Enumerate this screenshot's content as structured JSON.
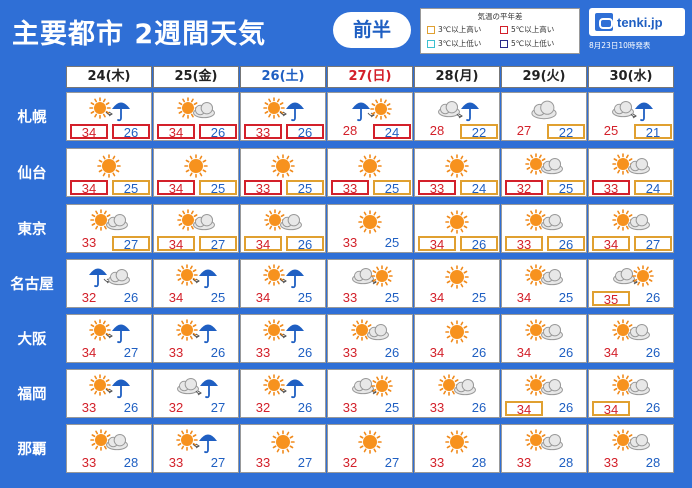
{
  "header": {
    "title": "主要都市 2週間天気",
    "half_label": "前半",
    "legend": {
      "title": "気温の平年差",
      "items": [
        {
          "label": "3℃以上高い",
          "color": "#e0a030"
        },
        {
          "label": "5℃以上高い",
          "color": "#d3202a"
        },
        {
          "label": "3℃以上低い",
          "color": "#3cc0d0"
        },
        {
          "label": "5℃以上低い",
          "color": "#2a2a8a"
        }
      ]
    },
    "logo_text": "tenki.jp",
    "issued": "8月23日10時発表"
  },
  "days": [
    {
      "label": "24(木)",
      "type": "weekday"
    },
    {
      "label": "25(金)",
      "type": "weekday"
    },
    {
      "label": "26(土)",
      "type": "sat"
    },
    {
      "label": "27(日)",
      "type": "sun"
    },
    {
      "label": "28(月)",
      "type": "weekday"
    },
    {
      "label": "29(火)",
      "type": "weekday"
    },
    {
      "label": "30(水)",
      "type": "weekday"
    }
  ],
  "cities": [
    {
      "name": "札幌",
      "forecasts": [
        {
          "icon": "sun-rain-icon",
          "high": "34",
          "low": "26",
          "high_border": "red",
          "low_border": "red"
        },
        {
          "icon": "sun-cloud-icon",
          "high": "34",
          "low": "26",
          "high_border": "red",
          "low_border": "red"
        },
        {
          "icon": "sun-rain-icon",
          "high": "33",
          "low": "26",
          "high_border": "red",
          "low_border": "red"
        },
        {
          "icon": "rain-sun-icon",
          "high": "28",
          "low": "24",
          "high_border": "",
          "low_border": "red"
        },
        {
          "icon": "cloud-rain-icon",
          "high": "28",
          "low": "22",
          "high_border": "",
          "low_border": "orange"
        },
        {
          "icon": "cloud-icon",
          "high": "27",
          "low": "22",
          "high_border": "",
          "low_border": "orange"
        },
        {
          "icon": "cloud-rain-icon",
          "high": "25",
          "low": "21",
          "high_border": "",
          "low_border": "orange"
        }
      ]
    },
    {
      "name": "仙台",
      "forecasts": [
        {
          "icon": "sun-icon",
          "high": "34",
          "low": "25",
          "high_border": "red",
          "low_border": "orange"
        },
        {
          "icon": "sun-icon",
          "high": "34",
          "low": "25",
          "high_border": "red",
          "low_border": "orange"
        },
        {
          "icon": "sun-icon",
          "high": "33",
          "low": "25",
          "high_border": "red",
          "low_border": "orange"
        },
        {
          "icon": "sun-icon",
          "high": "33",
          "low": "25",
          "high_border": "red",
          "low_border": "orange"
        },
        {
          "icon": "sun-icon",
          "high": "33",
          "low": "24",
          "high_border": "red",
          "low_border": "orange"
        },
        {
          "icon": "sun-cloud-icon",
          "high": "32",
          "low": "25",
          "high_border": "red",
          "low_border": "orange"
        },
        {
          "icon": "sun-cloud-icon",
          "high": "33",
          "low": "24",
          "high_border": "red",
          "low_border": "orange"
        }
      ]
    },
    {
      "name": "東京",
      "forecasts": [
        {
          "icon": "sun-cloud-icon",
          "high": "33",
          "low": "27",
          "high_border": "",
          "low_border": "orange"
        },
        {
          "icon": "sun-cloud-icon",
          "high": "34",
          "low": "27",
          "high_border": "orange",
          "low_border": "orange"
        },
        {
          "icon": "sun-cloud-icon",
          "high": "34",
          "low": "26",
          "high_border": "orange",
          "low_border": "orange"
        },
        {
          "icon": "sun-icon",
          "high": "33",
          "low": "25",
          "high_border": "",
          "low_border": ""
        },
        {
          "icon": "sun-icon",
          "high": "34",
          "low": "26",
          "high_border": "orange",
          "low_border": "orange"
        },
        {
          "icon": "sun-cloud-icon",
          "high": "33",
          "low": "26",
          "high_border": "orange",
          "low_border": "orange"
        },
        {
          "icon": "sun-cloud-icon",
          "high": "34",
          "low": "27",
          "high_border": "orange",
          "low_border": "orange"
        }
      ]
    },
    {
      "name": "名古屋",
      "forecasts": [
        {
          "icon": "rain-cloud-icon",
          "high": "32",
          "low": "26",
          "high_border": "",
          "low_border": ""
        },
        {
          "icon": "sun-rain-icon",
          "high": "34",
          "low": "25",
          "high_border": "",
          "low_border": ""
        },
        {
          "icon": "sun-rain-icon",
          "high": "34",
          "low": "25",
          "high_border": "",
          "low_border": ""
        },
        {
          "icon": "cloud-sun-icon",
          "high": "33",
          "low": "25",
          "high_border": "",
          "low_border": ""
        },
        {
          "icon": "sun-icon",
          "high": "34",
          "low": "25",
          "high_border": "",
          "low_border": ""
        },
        {
          "icon": "sun-cloud-icon",
          "high": "34",
          "low": "25",
          "high_border": "",
          "low_border": ""
        },
        {
          "icon": "cloud-sun-icon",
          "high": "35",
          "low": "26",
          "high_border": "orange",
          "low_border": ""
        }
      ]
    },
    {
      "name": "大阪",
      "forecasts": [
        {
          "icon": "sun-rain-icon",
          "high": "34",
          "low": "27",
          "high_border": "",
          "low_border": ""
        },
        {
          "icon": "sun-rain-icon",
          "high": "33",
          "low": "26",
          "high_border": "",
          "low_border": ""
        },
        {
          "icon": "sun-rain-icon",
          "high": "33",
          "low": "26",
          "high_border": "",
          "low_border": ""
        },
        {
          "icon": "sun-cloud-icon",
          "high": "33",
          "low": "26",
          "high_border": "",
          "low_border": ""
        },
        {
          "icon": "sun-icon",
          "high": "34",
          "low": "26",
          "high_border": "",
          "low_border": ""
        },
        {
          "icon": "sun-cloud-icon",
          "high": "34",
          "low": "26",
          "high_border": "",
          "low_border": ""
        },
        {
          "icon": "sun-cloud-icon",
          "high": "34",
          "low": "26",
          "high_border": "",
          "low_border": ""
        }
      ]
    },
    {
      "name": "福岡",
      "forecasts": [
        {
          "icon": "sun-rain-icon",
          "high": "33",
          "low": "26",
          "high_border": "",
          "low_border": ""
        },
        {
          "icon": "cloud-rain-icon",
          "high": "32",
          "low": "27",
          "high_border": "",
          "low_border": ""
        },
        {
          "icon": "sun-rain-icon",
          "high": "32",
          "low": "26",
          "high_border": "",
          "low_border": ""
        },
        {
          "icon": "cloud-sun-icon",
          "high": "33",
          "low": "25",
          "high_border": "",
          "low_border": ""
        },
        {
          "icon": "sun-cloud-icon",
          "high": "33",
          "low": "26",
          "high_border": "",
          "low_border": ""
        },
        {
          "icon": "sun-cloud-icon",
          "high": "34",
          "low": "26",
          "high_border": "orange",
          "low_border": ""
        },
        {
          "icon": "sun-cloud-icon",
          "high": "34",
          "low": "26",
          "high_border": "orange",
          "low_border": ""
        }
      ]
    },
    {
      "name": "那覇",
      "forecasts": [
        {
          "icon": "sun-cloud-icon",
          "high": "33",
          "low": "28",
          "high_border": "",
          "low_border": ""
        },
        {
          "icon": "sun-rain-icon",
          "high": "33",
          "low": "27",
          "high_border": "",
          "low_border": ""
        },
        {
          "icon": "sun-icon",
          "high": "33",
          "low": "27",
          "high_border": "",
          "low_border": ""
        },
        {
          "icon": "sun-icon",
          "high": "32",
          "low": "27",
          "high_border": "",
          "low_border": ""
        },
        {
          "icon": "sun-icon",
          "high": "33",
          "low": "28",
          "high_border": "",
          "low_border": ""
        },
        {
          "icon": "sun-cloud-icon",
          "high": "33",
          "low": "28",
          "high_border": "",
          "low_border": ""
        },
        {
          "icon": "sun-cloud-icon",
          "high": "33",
          "low": "28",
          "high_border": "",
          "low_border": ""
        }
      ]
    }
  ]
}
